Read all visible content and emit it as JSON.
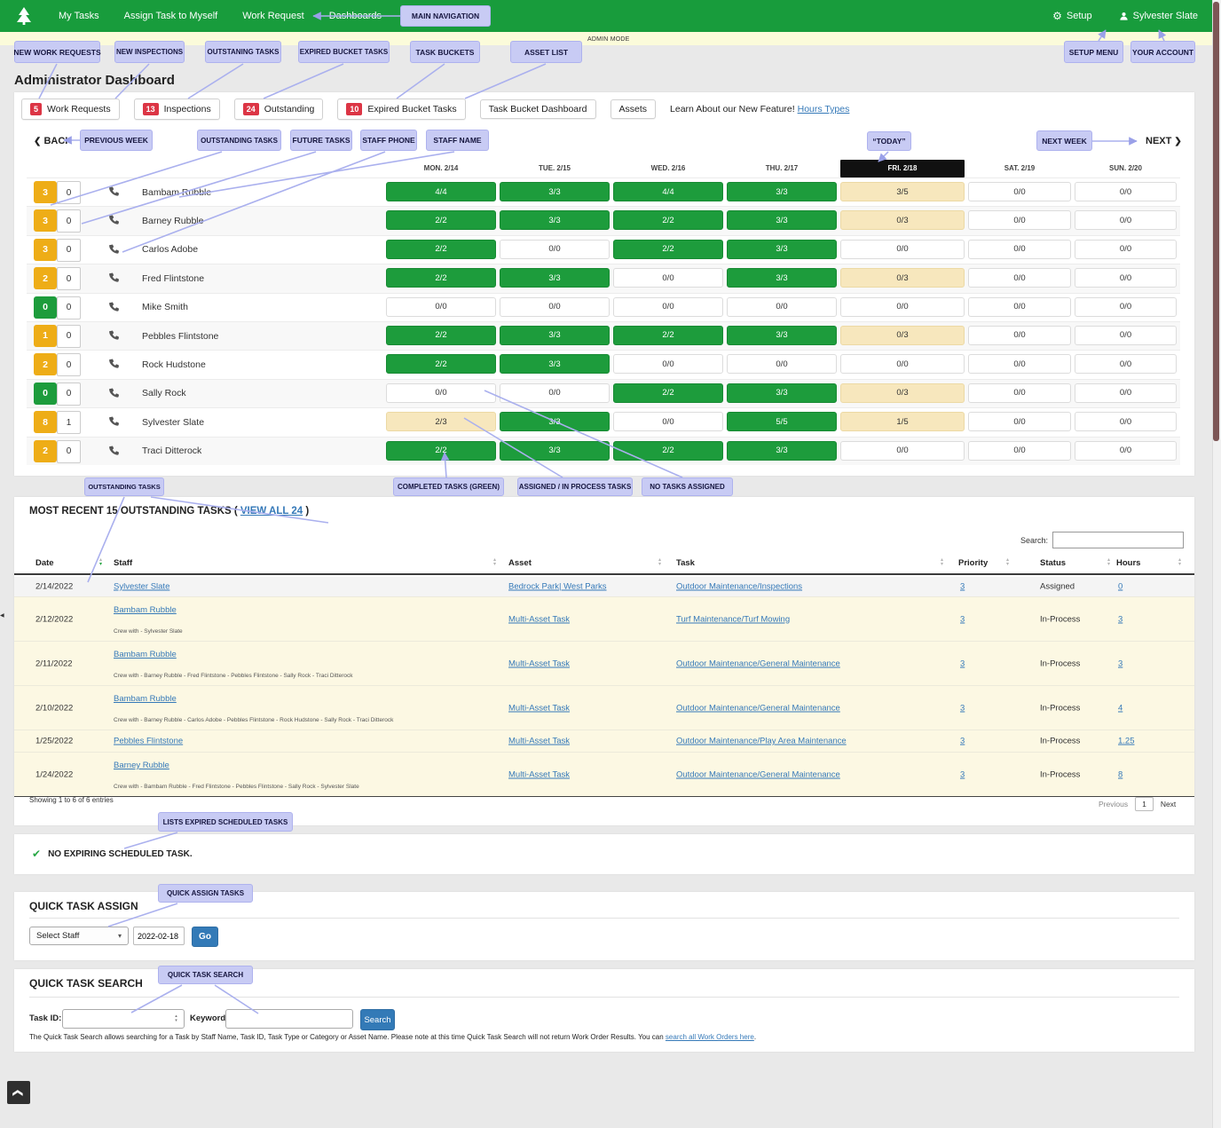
{
  "topnav": {
    "items": [
      "My Tasks",
      "Assign Task to Myself",
      "Work Request",
      "Dashboards"
    ],
    "setup_label": "Setup",
    "account_label": "Sylvester Slate"
  },
  "admin_mode": "ADMIN MODE",
  "page_title": "Administrator Dashboard",
  "badges": [
    {
      "count": "5",
      "label": "Work Requests"
    },
    {
      "count": "13",
      "label": "Inspections"
    },
    {
      "count": "24",
      "label": "Outstanding"
    },
    {
      "count": "10",
      "label": "Expired Bucket Tasks"
    },
    {
      "count": "",
      "label": "Task Bucket Dashboard"
    },
    {
      "count": "",
      "label": "Assets"
    }
  ],
  "feature_note": {
    "text": "Learn About our New Feature! ",
    "link": "Hours Types"
  },
  "week_nav": {
    "back": "BACK",
    "next": "NEXT",
    "back_chevron": "❮",
    "next_chevron": "❯"
  },
  "schedule": {
    "days": [
      "MON. 2/14",
      "TUE. 2/15",
      "WED. 2/16",
      "THU. 2/17",
      "FRI. 2/18",
      "SAT. 2/19",
      "SUN. 2/20"
    ],
    "today_index": 4,
    "rows": [
      {
        "outstanding": "3",
        "badge": "orange",
        "future": "0",
        "name": "Bambam Rubble",
        "cells": [
          {
            "v": "4/4",
            "s": "done"
          },
          {
            "v": "3/3",
            "s": "done"
          },
          {
            "v": "4/4",
            "s": "done"
          },
          {
            "v": "3/3",
            "s": "done"
          },
          {
            "v": "3/5",
            "s": "pend"
          },
          {
            "v": "0/0",
            "s": "empty"
          },
          {
            "v": "0/0",
            "s": "empty"
          }
        ]
      },
      {
        "outstanding": "3",
        "badge": "orange",
        "future": "0",
        "name": "Barney Rubble",
        "cells": [
          {
            "v": "2/2",
            "s": "done"
          },
          {
            "v": "3/3",
            "s": "done"
          },
          {
            "v": "2/2",
            "s": "done"
          },
          {
            "v": "3/3",
            "s": "done"
          },
          {
            "v": "0/3",
            "s": "pend"
          },
          {
            "v": "0/0",
            "s": "empty"
          },
          {
            "v": "0/0",
            "s": "empty"
          }
        ]
      },
      {
        "outstanding": "3",
        "badge": "orange",
        "future": "0",
        "name": "Carlos Adobe",
        "cells": [
          {
            "v": "2/2",
            "s": "done"
          },
          {
            "v": "0/0",
            "s": "empty"
          },
          {
            "v": "2/2",
            "s": "done"
          },
          {
            "v": "3/3",
            "s": "done"
          },
          {
            "v": "0/0",
            "s": "empty"
          },
          {
            "v": "0/0",
            "s": "empty"
          },
          {
            "v": "0/0",
            "s": "empty"
          }
        ]
      },
      {
        "outstanding": "2",
        "badge": "orange",
        "future": "0",
        "name": "Fred Flintstone",
        "cells": [
          {
            "v": "2/2",
            "s": "done"
          },
          {
            "v": "3/3",
            "s": "done"
          },
          {
            "v": "0/0",
            "s": "empty"
          },
          {
            "v": "3/3",
            "s": "done"
          },
          {
            "v": "0/3",
            "s": "pend"
          },
          {
            "v": "0/0",
            "s": "empty"
          },
          {
            "v": "0/0",
            "s": "empty"
          }
        ]
      },
      {
        "outstanding": "0",
        "badge": "green",
        "future": "0",
        "name": "Mike Smith",
        "cells": [
          {
            "v": "0/0",
            "s": "empty"
          },
          {
            "v": "0/0",
            "s": "empty"
          },
          {
            "v": "0/0",
            "s": "empty"
          },
          {
            "v": "0/0",
            "s": "empty"
          },
          {
            "v": "0/0",
            "s": "empty"
          },
          {
            "v": "0/0",
            "s": "empty"
          },
          {
            "v": "0/0",
            "s": "empty"
          }
        ]
      },
      {
        "outstanding": "1",
        "badge": "orange",
        "future": "0",
        "name": "Pebbles Flintstone",
        "cells": [
          {
            "v": "2/2",
            "s": "done"
          },
          {
            "v": "3/3",
            "s": "done"
          },
          {
            "v": "2/2",
            "s": "done"
          },
          {
            "v": "3/3",
            "s": "done"
          },
          {
            "v": "0/3",
            "s": "pend"
          },
          {
            "v": "0/0",
            "s": "empty"
          },
          {
            "v": "0/0",
            "s": "empty"
          }
        ]
      },
      {
        "outstanding": "2",
        "badge": "orange",
        "future": "0",
        "name": "Rock Hudstone",
        "cells": [
          {
            "v": "2/2",
            "s": "done"
          },
          {
            "v": "3/3",
            "s": "done"
          },
          {
            "v": "0/0",
            "s": "empty"
          },
          {
            "v": "0/0",
            "s": "empty"
          },
          {
            "v": "0/0",
            "s": "empty"
          },
          {
            "v": "0/0",
            "s": "empty"
          },
          {
            "v": "0/0",
            "s": "empty"
          }
        ]
      },
      {
        "outstanding": "0",
        "badge": "green",
        "future": "0",
        "name": "Sally Rock",
        "cells": [
          {
            "v": "0/0",
            "s": "empty"
          },
          {
            "v": "0/0",
            "s": "empty"
          },
          {
            "v": "2/2",
            "s": "done"
          },
          {
            "v": "3/3",
            "s": "done"
          },
          {
            "v": "0/3",
            "s": "pend"
          },
          {
            "v": "0/0",
            "s": "empty"
          },
          {
            "v": "0/0",
            "s": "empty"
          }
        ]
      },
      {
        "outstanding": "8",
        "badge": "orange",
        "future": "1",
        "name": "Sylvester Slate",
        "cells": [
          {
            "v": "2/3",
            "s": "pend"
          },
          {
            "v": "3/3",
            "s": "done"
          },
          {
            "v": "0/0",
            "s": "empty"
          },
          {
            "v": "5/5",
            "s": "done"
          },
          {
            "v": "1/5",
            "s": "pend"
          },
          {
            "v": "0/0",
            "s": "empty"
          },
          {
            "v": "0/0",
            "s": "empty"
          }
        ]
      },
      {
        "outstanding": "2",
        "badge": "orange",
        "future": "0",
        "name": "Traci Ditterock",
        "cells": [
          {
            "v": "2/2",
            "s": "done"
          },
          {
            "v": "3/3",
            "s": "done"
          },
          {
            "v": "2/2",
            "s": "done"
          },
          {
            "v": "3/3",
            "s": "done"
          },
          {
            "v": "0/0",
            "s": "empty"
          },
          {
            "v": "0/0",
            "s": "empty"
          },
          {
            "v": "0/0",
            "s": "empty"
          }
        ]
      }
    ]
  },
  "outstanding_table": {
    "title_pre": "MOST RECENT 15 OUTSTANDING TASKS ( ",
    "view_all": "VIEW ALL 24",
    "title_post": " )",
    "search_label": "Search:",
    "columns": [
      "Date",
      "Staff",
      "Asset",
      "Task",
      "Priority",
      "Status",
      "Hours"
    ],
    "rows": [
      {
        "date": "2/14/2022",
        "staff": "Sylvester Slate",
        "crew": "",
        "asset": "Bedrock Park| West Parks",
        "task": "Outdoor Maintenance/Inspections",
        "priority": "3",
        "status": "Assigned",
        "hours": "0",
        "hl": true
      },
      {
        "date": "2/12/2022",
        "staff": "Bambam Rubble",
        "crew": "Crew with - Sylvester Slate",
        "asset": "Multi-Asset Task",
        "task": "Turf Maintenance/Turf Mowing",
        "priority": "3",
        "status": "In-Process",
        "hours": "3",
        "hl": false
      },
      {
        "date": "2/11/2022",
        "staff": "Bambam Rubble",
        "crew": "Crew with - Barney Rubble - Fred Flintstone - Pebbles Flintstone - Sally Rock - Traci Ditterock",
        "asset": "Multi-Asset Task",
        "task": "Outdoor Maintenance/General Maintenance",
        "priority": "3",
        "status": "In-Process",
        "hours": "3",
        "hl": false
      },
      {
        "date": "2/10/2022",
        "staff": "Bambam Rubble",
        "crew": "Crew with - Barney Rubble - Carlos Adobe - Pebbles Flintstone - Rock Hudstone - Sally Rock - Traci Ditterock",
        "asset": "Multi-Asset Task",
        "task": "Outdoor Maintenance/General Maintenance",
        "priority": "3",
        "status": "In-Process",
        "hours": "4",
        "hl": false
      },
      {
        "date": "1/25/2022",
        "staff": "Pebbles Flintstone",
        "crew": "",
        "asset": "Multi-Asset Task",
        "task": "Outdoor Maintenance/Play Area Maintenance",
        "priority": "3",
        "status": "In-Process",
        "hours": "1.25",
        "hl": false
      },
      {
        "date": "1/24/2022",
        "staff": "Barney Rubble",
        "crew": "Crew with - Bambam Rubble - Fred Flintstone - Pebbles Flintstone - Sally Rock - Sylvester Slate",
        "asset": "Multi-Asset Task",
        "task": "Outdoor Maintenance/General Maintenance",
        "priority": "3",
        "status": "In-Process",
        "hours": "8",
        "hl": false
      }
    ],
    "footer": "Showing 1 to 6 of 6 entries",
    "pagination": {
      "prev": "Previous",
      "page": "1",
      "next": "Next"
    }
  },
  "expiring": {
    "text": "NO EXPIRING SCHEDULED TASK.",
    "check": "✔"
  },
  "quick_assign": {
    "title": "QUICK TASK ASSIGN",
    "select_value": "Select Staff",
    "date": "2022-02-18",
    "go": "Go"
  },
  "quick_search": {
    "title": "QUICK TASK SEARCH",
    "task_id_label": "Task ID:",
    "keyword_label": "Keyword:",
    "button": "Search",
    "note_pre": "The Quick Task Search allows searching for a Task by Staff Name, Task ID, Task Type or Category or Asset Name. Please note at this time Quick Task Search will not return Work Order Results. You can ",
    "note_link": "search all Work Orders here",
    "note_post": "."
  },
  "annotations": {
    "main_navigation": "MAIN NAVIGATION",
    "new_work_requests": "NEW WORK REQUESTS",
    "new_inspections": "NEW INSPECTIONS",
    "outstaning_tasks": "OUTSTANING TASKS",
    "expired_bucket_tasks": "EXPIRED BUCKET TASKS",
    "task_buckets": "TASK BUCKETS",
    "asset_list": "ASSET LIST",
    "setup_menu": "SETUP MENU",
    "your_account": "YOUR ACCOUNT",
    "previous_week": "PREVIOUS WEEK",
    "outstanding_tasks_top": "OUTSTANDING TASKS",
    "future_tasks": "FUTURE TASKS",
    "staff_phone": "STAFF PHONE",
    "staff_name": "STAFF NAME",
    "today": "“TODAY”",
    "next_week": "NEXT WEEK",
    "outstanding_tasks_bottom": "OUTSTANDING TASKS",
    "completed_tasks": "COMPLETED TASKS (GREEN)",
    "assigned_in_process": "ASSIGNED / IN PROCESS TASKS",
    "no_tasks_assigned": "NO TASKS ASSIGNED",
    "lists_expired": "LISTS EXPIRED SCHEDULED TASKS",
    "quick_assign_tasks": "QUICK ASSIGN TASKS",
    "quick_task_search": "QUICK TASK SEARCH"
  },
  "colors": {
    "nav_green": "#189c3c",
    "cell_done": "#1d9c3c",
    "cell_pending": "#f7e7bd",
    "badge_orange": "#eead17",
    "badge_red": "#dc3545",
    "annotation": "#c8cbf4",
    "link_blue": "#3579b8",
    "button_blue": "#337ab7"
  }
}
